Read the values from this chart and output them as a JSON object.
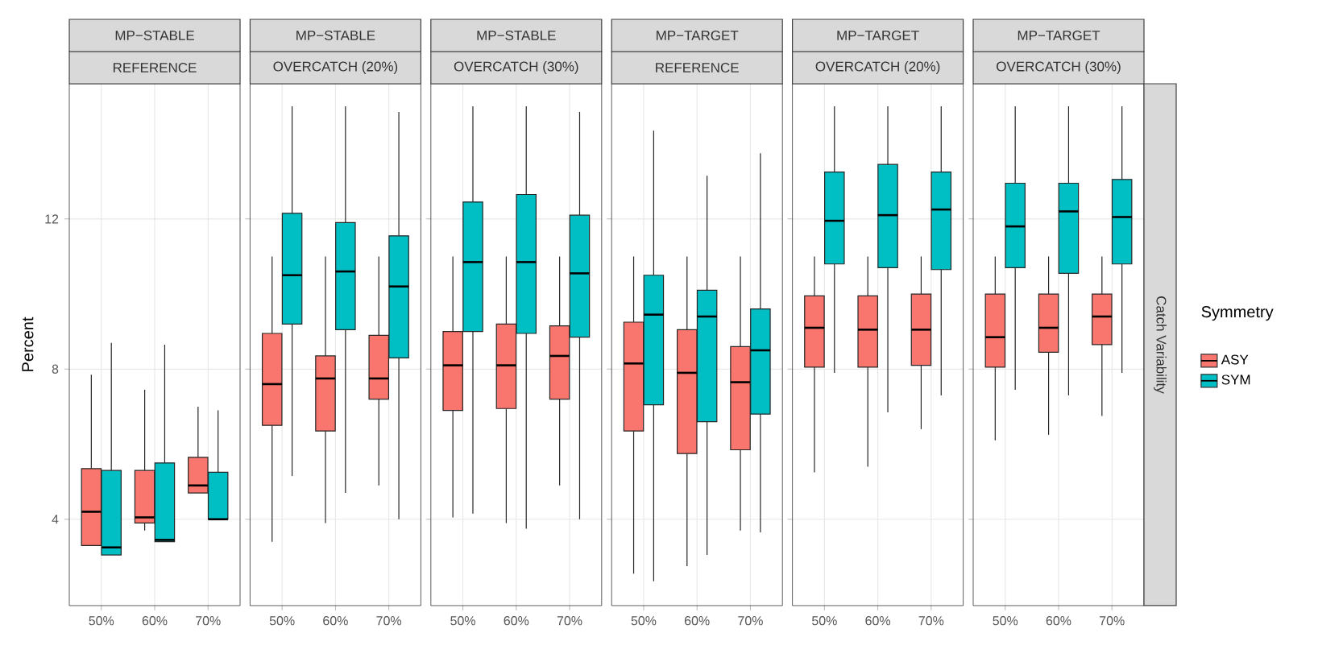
{
  "chart_data": [
    {
      "type": "box",
      "title": "MP−STABLE",
      "subtitle": "REFERENCE",
      "ylabel": "Percent",
      "categories": [
        "50%",
        "60%",
        "70%"
      ],
      "ylim": [
        1.7,
        15.6
      ],
      "yticks": [
        4,
        8,
        12
      ],
      "grid": true,
      "series": [
        {
          "color": "#f8766d",
          "boxes": [
            {
              "low": 3.3,
              "q1": 3.3,
              "median": 4.2,
              "q3": 5.35,
              "high": 7.85
            },
            {
              "low": 3.7,
              "q1": 3.9,
              "median": 4.05,
              "q3": 5.3,
              "high": 7.45
            },
            {
              "low": 4.7,
              "q1": 4.7,
              "median": 4.9,
              "q3": 5.65,
              "high": 7.0
            }
          ]
        },
        {
          "color": "#00bfc4",
          "boxes": [
            {
              "low": 3.05,
              "q1": 3.05,
              "median": 3.25,
              "q3": 5.3,
              "high": 8.7
            },
            {
              "low": 3.4,
              "q1": 3.4,
              "median": 3.45,
              "q3": 5.5,
              "high": 8.65
            },
            {
              "low": 4.0,
              "q1": 4.0,
              "median": 4.0,
              "q3": 5.25,
              "high": 6.9
            }
          ]
        }
      ]
    },
    {
      "type": "box",
      "title": "MP−STABLE",
      "subtitle": "OVERCATCH (20%)",
      "categories": [
        "50%",
        "60%",
        "70%"
      ],
      "ylim": [
        1.7,
        15.6
      ],
      "yticks": [
        4,
        8,
        12
      ],
      "grid": true,
      "tick_labels": "x",
      "series": [
        {
          "color": "#f8766d",
          "boxes": [
            {
              "low": 3.4,
              "q1": 6.5,
              "median": 7.6,
              "q3": 8.95,
              "high": 11.0
            },
            {
              "low": 3.9,
              "q1": 6.35,
              "median": 7.75,
              "q3": 8.35,
              "high": 11.0
            },
            {
              "low": 4.9,
              "q1": 7.2,
              "median": 7.75,
              "q3": 8.9,
              "high": 11.0
            }
          ]
        },
        {
          "color": "#00bfc4",
          "boxes": [
            {
              "low": 5.15,
              "q1": 9.2,
              "median": 10.5,
              "q3": 12.15,
              "high": 15.0
            },
            {
              "low": 4.7,
              "q1": 9.05,
              "median": 10.6,
              "q3": 11.9,
              "high": 15.0
            },
            {
              "low": 4.0,
              "q1": 8.3,
              "median": 10.2,
              "q3": 11.55,
              "high": 14.85
            }
          ]
        }
      ]
    },
    {
      "type": "box",
      "title": "MP−STABLE",
      "subtitle": "OVERCATCH (30%)",
      "categories": [
        "50%",
        "60%",
        "70%"
      ],
      "ylim": [
        1.7,
        15.6
      ],
      "yticks": [
        4,
        8,
        12
      ],
      "grid": true,
      "tick_labels": "x",
      "series": [
        {
          "color": "#f8766d",
          "boxes": [
            {
              "low": 4.05,
              "q1": 6.9,
              "median": 8.1,
              "q3": 9.0,
              "high": 11.0
            },
            {
              "low": 3.9,
              "q1": 6.95,
              "median": 8.1,
              "q3": 9.2,
              "high": 11.0
            },
            {
              "low": 4.9,
              "q1": 7.2,
              "median": 8.35,
              "q3": 9.15,
              "high": 11.0
            }
          ]
        },
        {
          "color": "#00bfc4",
          "boxes": [
            {
              "low": 4.15,
              "q1": 9.0,
              "median": 10.85,
              "q3": 12.45,
              "high": 15.0
            },
            {
              "low": 3.75,
              "q1": 8.95,
              "median": 10.85,
              "q3": 12.65,
              "high": 15.0
            },
            {
              "low": 4.0,
              "q1": 8.85,
              "median": 10.55,
              "q3": 12.1,
              "high": 14.85
            }
          ]
        }
      ]
    },
    {
      "type": "box",
      "title": "MP−TARGET",
      "subtitle": "REFERENCE",
      "categories": [
        "50%",
        "60%",
        "70%"
      ],
      "ylim": [
        1.7,
        15.6
      ],
      "yticks": [
        4,
        8,
        12
      ],
      "grid": true,
      "tick_labels": "x",
      "series": [
        {
          "color": "#f8766d",
          "boxes": [
            {
              "low": 2.55,
              "q1": 6.35,
              "median": 8.15,
              "q3": 9.25,
              "high": 11.0
            },
            {
              "low": 2.75,
              "q1": 5.75,
              "median": 7.9,
              "q3": 9.05,
              "high": 11.0
            },
            {
              "low": 3.7,
              "q1": 5.85,
              "median": 7.65,
              "q3": 8.6,
              "high": 11.0
            }
          ]
        },
        {
          "color": "#00bfc4",
          "boxes": [
            {
              "low": 2.35,
              "q1": 7.05,
              "median": 9.45,
              "q3": 10.5,
              "high": 14.35
            },
            {
              "low": 3.05,
              "q1": 6.6,
              "median": 9.4,
              "q3": 10.1,
              "high": 13.15
            },
            {
              "low": 3.65,
              "q1": 6.8,
              "median": 8.5,
              "q3": 9.6,
              "high": 13.75
            }
          ]
        }
      ]
    },
    {
      "type": "box",
      "title": "MP−TARGET",
      "subtitle": "OVERCATCH (20%)",
      "categories": [
        "50%",
        "60%",
        "70%"
      ],
      "ylim": [
        1.7,
        15.6
      ],
      "yticks": [
        4,
        8,
        12
      ],
      "grid": true,
      "tick_labels": "x",
      "series": [
        {
          "color": "#f8766d",
          "boxes": [
            {
              "low": 5.25,
              "q1": 8.05,
              "median": 9.1,
              "q3": 9.95,
              "high": 11.0
            },
            {
              "low": 5.4,
              "q1": 8.05,
              "median": 9.05,
              "q3": 9.95,
              "high": 11.0
            },
            {
              "low": 6.4,
              "q1": 8.1,
              "median": 9.05,
              "q3": 10.0,
              "high": 11.0
            }
          ]
        },
        {
          "color": "#00bfc4",
          "boxes": [
            {
              "low": 7.9,
              "q1": 10.8,
              "median": 11.95,
              "q3": 13.25,
              "high": 15.0
            },
            {
              "low": 6.85,
              "q1": 10.7,
              "median": 12.1,
              "q3": 13.45,
              "high": 15.0
            },
            {
              "low": 7.3,
              "q1": 10.65,
              "median": 12.25,
              "q3": 13.25,
              "high": 15.0
            }
          ]
        }
      ]
    },
    {
      "type": "box",
      "title": "MP−TARGET",
      "subtitle": "OVERCATCH (30%)",
      "categories": [
        "50%",
        "60%",
        "70%"
      ],
      "ylim": [
        1.7,
        15.6
      ],
      "yticks": [
        4,
        8,
        12
      ],
      "grid": true,
      "tick_labels": "x",
      "legend": "right",
      "legend_title": "Symmetry",
      "annotations": [
        "Catch Variability"
      ],
      "series": [
        {
          "name": "ASY",
          "color": "#f8766d",
          "boxes": [
            {
              "low": 6.1,
              "q1": 8.05,
              "median": 8.85,
              "q3": 10.0,
              "high": 11.0
            },
            {
              "low": 6.25,
              "q1": 8.45,
              "median": 9.1,
              "q3": 10.0,
              "high": 11.0
            },
            {
              "low": 6.75,
              "q1": 8.65,
              "median": 9.4,
              "q3": 10.0,
              "high": 11.0
            }
          ]
        },
        {
          "name": "SYM",
          "color": "#00bfc4",
          "boxes": [
            {
              "low": 7.45,
              "q1": 10.7,
              "median": 11.8,
              "q3": 12.95,
              "high": 15.0
            },
            {
              "low": 7.3,
              "q1": 10.55,
              "median": 12.2,
              "q3": 12.95,
              "high": 15.0
            },
            {
              "low": 7.9,
              "q1": 10.8,
              "median": 12.05,
              "q3": 13.05,
              "high": 15.0
            }
          ]
        }
      ]
    }
  ]
}
